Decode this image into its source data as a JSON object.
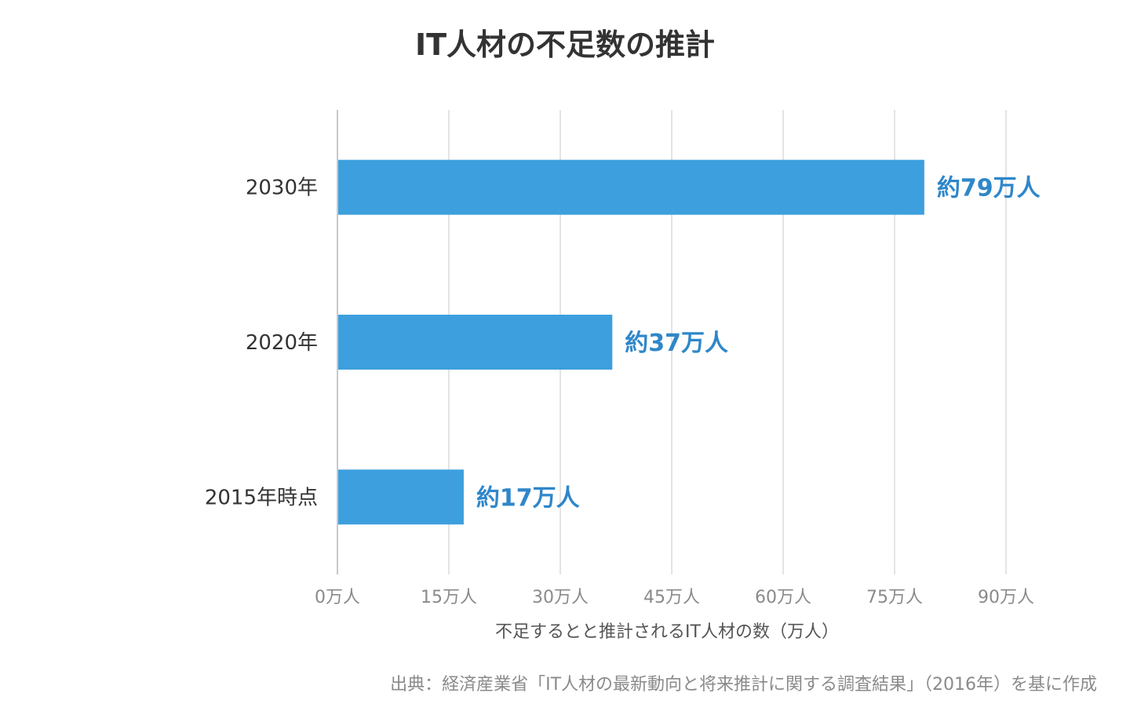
{
  "chart_data": {
    "type": "bar",
    "orientation": "horizontal",
    "title": "IT人材の不足数の推計",
    "categories": [
      "2030年",
      "2020年",
      "2015年時点"
    ],
    "values": [
      79,
      37,
      17
    ],
    "data_labels": [
      "約79万人",
      "約37万人",
      "約17万人"
    ],
    "xlabel": "不足するとと推計されるIT人材の数（万人）",
    "ylabel": "",
    "xlim": [
      0,
      90
    ],
    "x_ticks": [
      0,
      15,
      30,
      45,
      60,
      75,
      90
    ],
    "x_tick_labels": [
      "0万人",
      "15万人",
      "30万人",
      "45万人",
      "60万人",
      "75万人",
      "90万人"
    ],
    "grid": true,
    "legend": "none",
    "source": "出典：経済産業省「IT人材の最新動向と将来推計に関する調査結果」（2016年）を基に作成",
    "colors": {
      "bar": "#3d9fdd",
      "data_label": "#2f87c9"
    }
  }
}
